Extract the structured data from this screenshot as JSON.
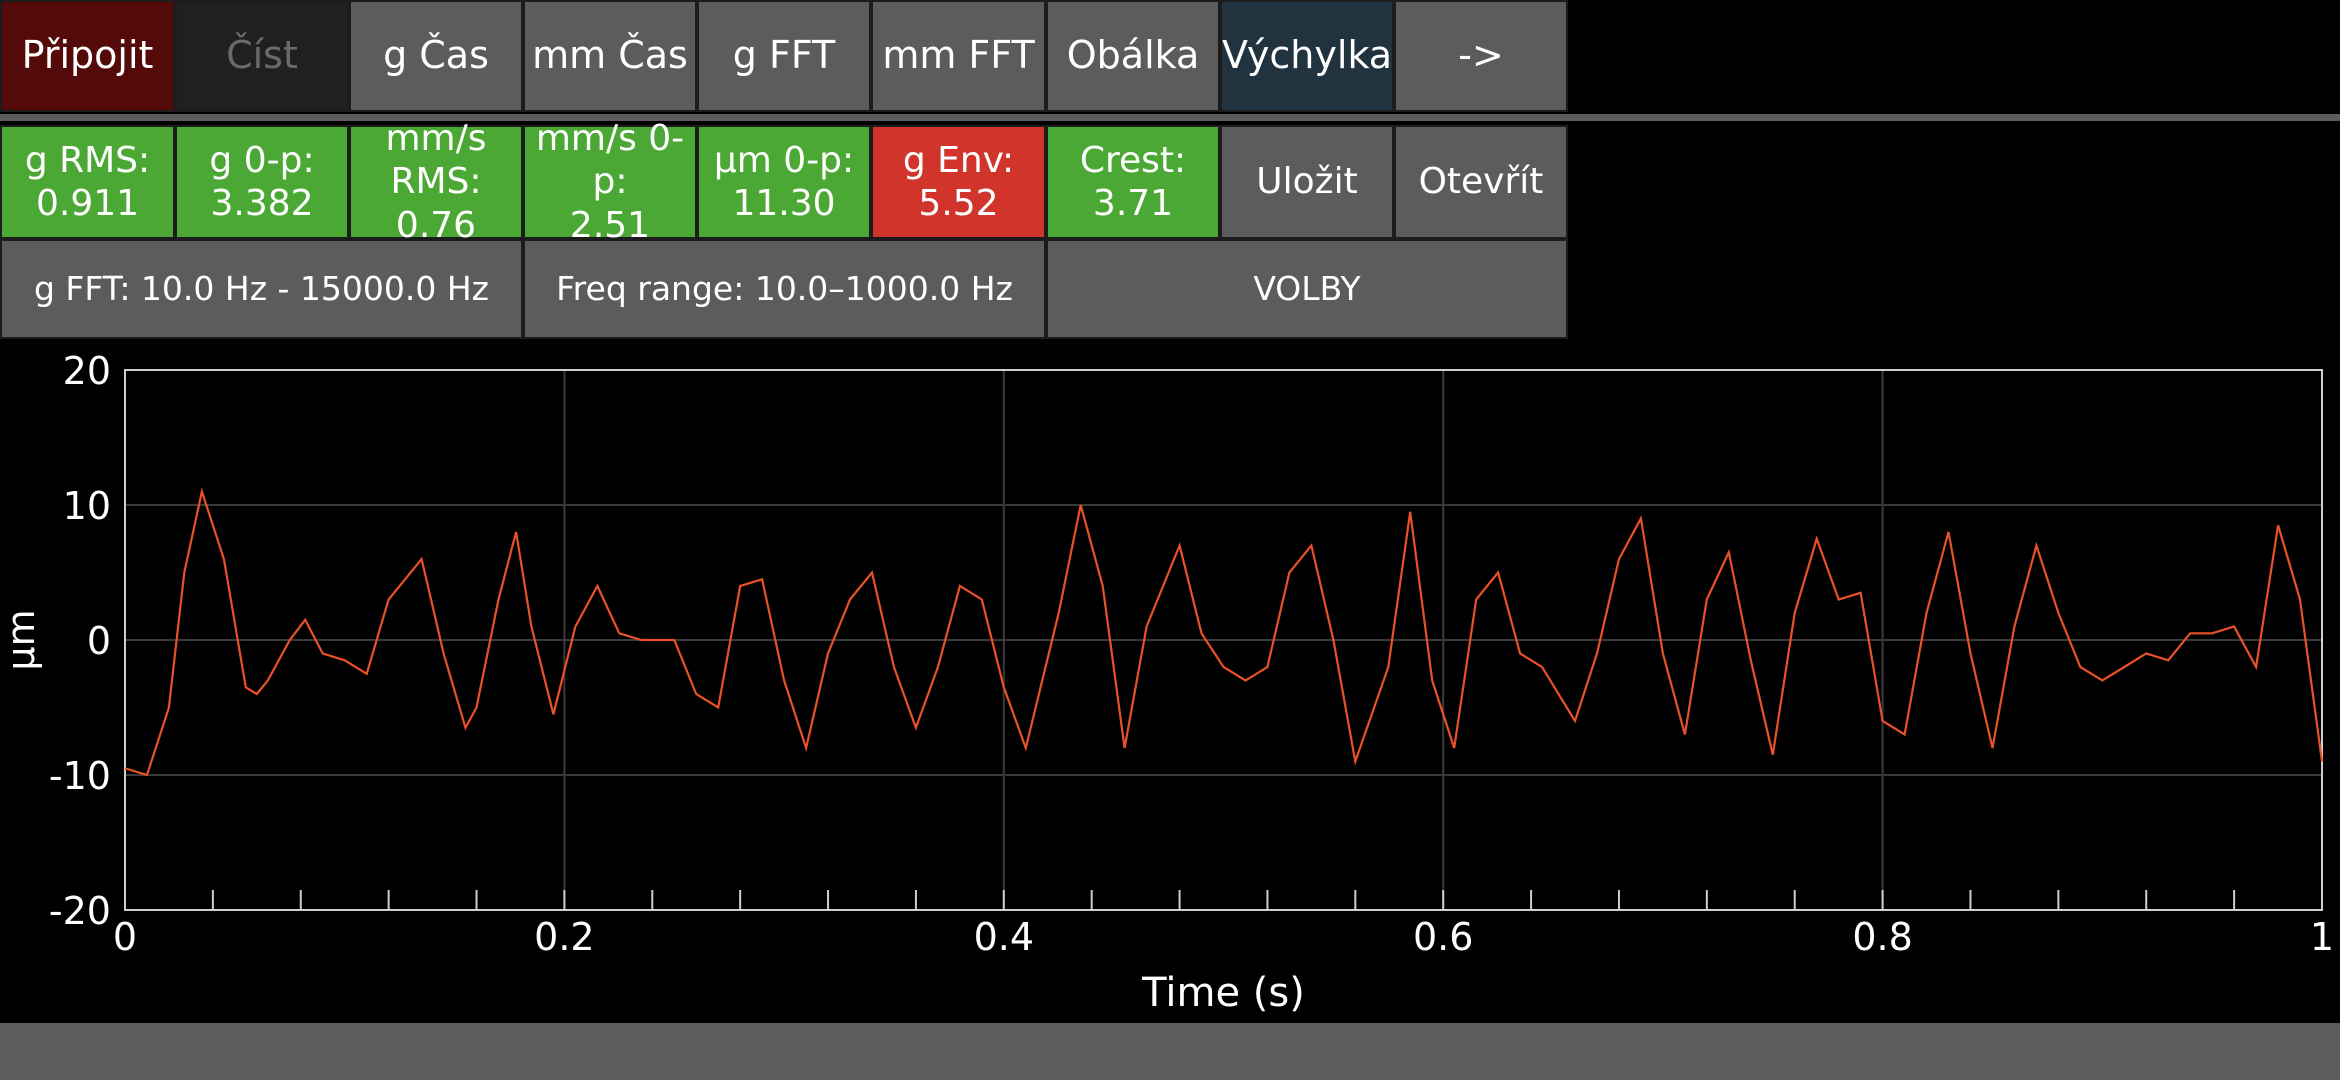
{
  "toolbar": {
    "connect": "Připojit",
    "read": "Číst",
    "g_time": "g Čas",
    "mm_time": "mm Čas",
    "g_fft": "g FFT",
    "mm_fft": "mm FFT",
    "envelope": "Obálka",
    "displacement": "Výchylka",
    "next": "->"
  },
  "metrics": {
    "g_rms": {
      "label": "g RMS:",
      "value": "0.911",
      "status": "ok"
    },
    "g_0p": {
      "label": "g 0-p:",
      "value": "3.382",
      "status": "ok"
    },
    "mms_rms": {
      "label": "mm/s RMS:",
      "value": "0.76",
      "status": "ok"
    },
    "mms_0p": {
      "label": "mm/s 0-p:",
      "value": "2.51",
      "status": "ok"
    },
    "um_0p": {
      "label": "µm 0-p:",
      "value": "11.30",
      "status": "ok"
    },
    "g_env": {
      "label": "g Env:",
      "value": "5.52",
      "status": "alarm"
    },
    "crest": {
      "label": "Crest:",
      "value": "3.71",
      "status": "ok"
    }
  },
  "actions": {
    "save": "Uložit",
    "open": "Otevřít"
  },
  "settings": {
    "g_fft_range": "g FFT: 10.0 Hz - 15000.0 Hz",
    "freq_range": "Freq range: 10.0–1000.0 Hz",
    "options": "VOLBY"
  },
  "colors": {
    "ok": "#4ca834",
    "alarm": "#d0342a",
    "button": "#5c5c5c",
    "active_tab": "#20333f",
    "connect": "#550a0a",
    "trace": "#e8512a"
  },
  "chart_data": {
    "type": "line",
    "xlabel": "Time (s)",
    "ylabel": "µm",
    "xlim": [
      0,
      1
    ],
    "ylim": [
      -20,
      20
    ],
    "x_ticks": [
      "0",
      "0.2",
      "0.4",
      "0.6",
      "0.8",
      "1"
    ],
    "y_ticks": [
      "20",
      "10",
      "0",
      "-10",
      "-20"
    ],
    "grid": true,
    "series": [
      {
        "x": [
          0,
          0.01,
          0.02,
          0.027,
          0.035,
          0.045,
          0.055,
          0.06,
          0.065,
          0.075,
          0.082,
          0.09,
          0.1,
          0.11,
          0.12,
          0.135,
          0.145,
          0.155,
          0.16,
          0.17,
          0.178,
          0.185,
          0.195,
          0.205,
          0.215,
          0.225,
          0.235,
          0.25,
          0.26,
          0.27,
          0.28,
          0.29,
          0.3,
          0.31,
          0.32,
          0.33,
          0.34,
          0.35,
          0.36,
          0.37,
          0.38,
          0.39,
          0.4,
          0.41,
          0.425,
          0.435,
          0.445,
          0.455,
          0.465,
          0.48,
          0.49,
          0.5,
          0.51,
          0.52,
          0.53,
          0.54,
          0.55,
          0.56,
          0.575,
          0.585,
          0.595,
          0.605,
          0.615,
          0.625,
          0.635,
          0.645,
          0.66,
          0.67,
          0.68,
          0.69,
          0.7,
          0.71,
          0.72,
          0.73,
          0.74,
          0.75,
          0.76,
          0.77,
          0.78,
          0.79,
          0.8,
          0.81,
          0.82,
          0.83,
          0.84,
          0.85,
          0.86,
          0.87,
          0.88,
          0.89,
          0.9,
          0.91,
          0.92,
          0.93,
          0.94,
          0.95,
          0.96,
          0.97,
          0.98,
          0.99,
          1.0
        ],
        "y": [
          -9.5,
          -10,
          -5,
          5,
          11,
          6,
          -3.5,
          -4,
          -3,
          0,
          1.5,
          -1,
          -1.5,
          -2.5,
          3,
          6,
          -1,
          -6.5,
          -5,
          3,
          8,
          1,
          -5.5,
          1,
          4,
          0.5,
          0,
          0,
          -4,
          -5,
          4,
          4.5,
          -3,
          -8,
          -1,
          3,
          5,
          -2,
          -6.5,
          -2,
          4,
          3,
          -3.5,
          -8,
          2,
          10,
          4,
          -8,
          1,
          7,
          0.5,
          -2,
          -3,
          -2,
          5,
          7,
          0,
          -9,
          -2,
          9.5,
          -3,
          -8,
          3,
          5,
          -1,
          -2,
          -6,
          -1,
          6,
          9,
          -1,
          -7,
          3,
          6.5,
          -1.5,
          -8.5,
          2,
          7.5,
          3,
          3.5,
          -6,
          -7,
          2,
          8,
          -1,
          -8,
          1,
          7,
          2,
          -2,
          -3,
          -2,
          -1,
          -1.5,
          0.5,
          0.5,
          1,
          -2,
          8.5,
          3,
          -9
        ]
      }
    ]
  }
}
